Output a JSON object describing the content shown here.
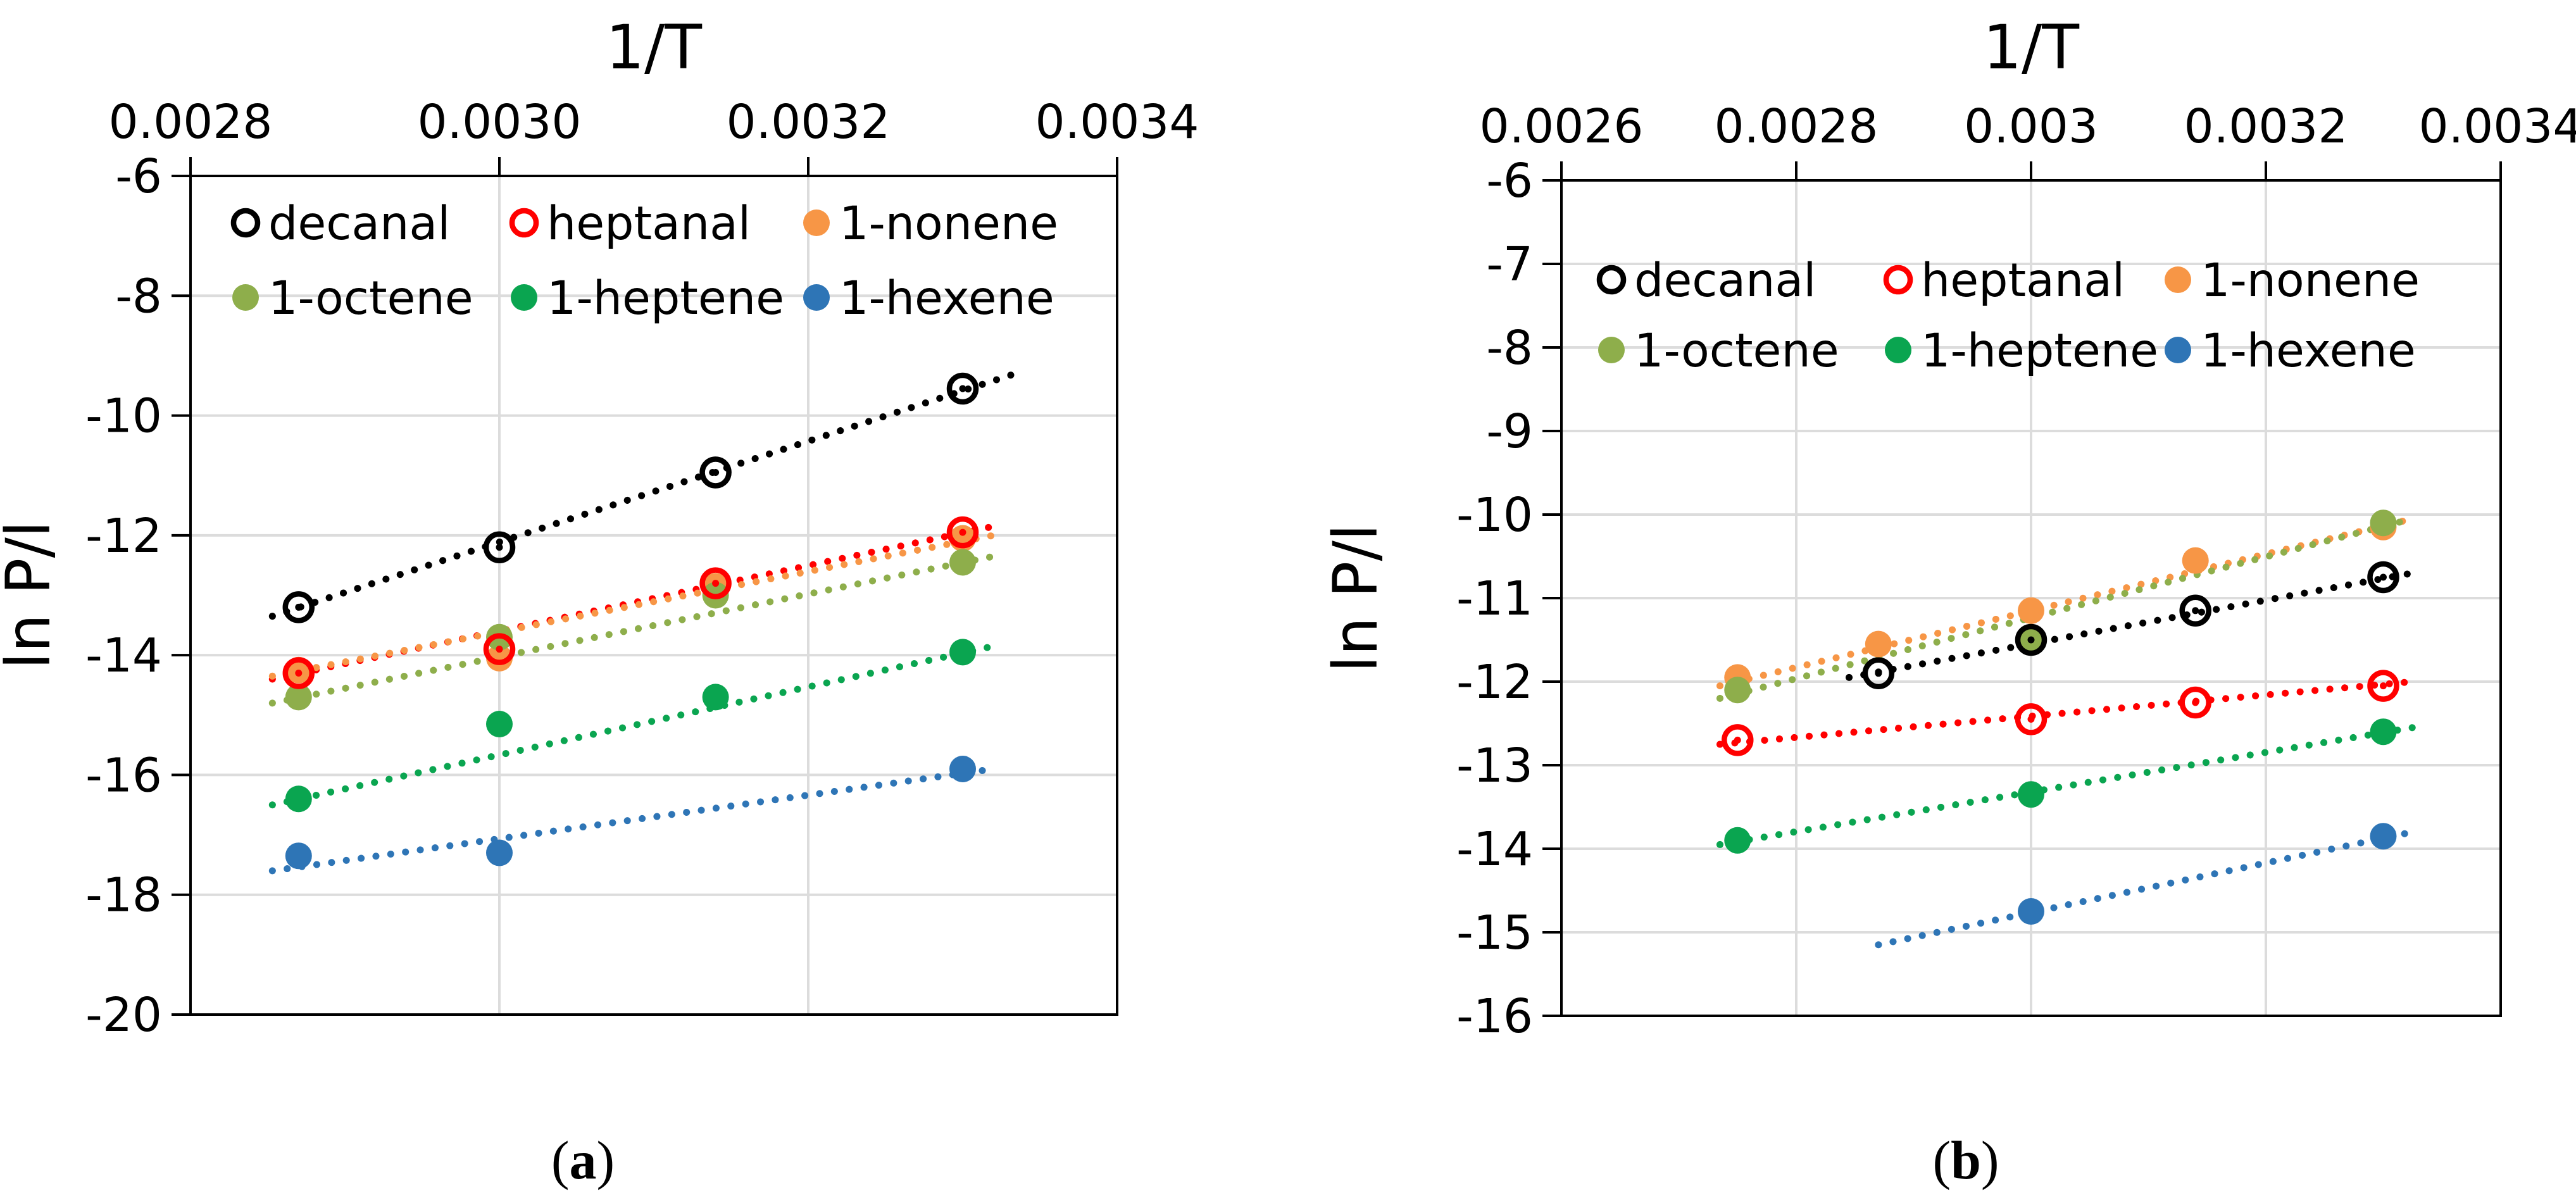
{
  "figure": {
    "background": "#ffffff",
    "axis_color": "#000000",
    "gridline_color": "#DCDCDC"
  },
  "captions": {
    "a": {
      "open": "(",
      "letter": "a",
      "close": ")"
    },
    "b": {
      "open": "(",
      "letter": "b",
      "close": ")"
    }
  },
  "chart_data": [
    {
      "id": "a",
      "type": "scatter",
      "title": "1/T",
      "ylabel": "ln P/l",
      "xlim": [
        0.0028,
        0.0034
      ],
      "ylim": [
        -20,
        -6
      ],
      "xticks": [
        0.0028,
        0.003,
        0.0032,
        0.0034
      ],
      "xtick_labels": [
        "0.0028",
        "0.0030",
        "0.0032",
        "0.0034"
      ],
      "yticks": [
        -6,
        -8,
        -10,
        -12,
        -14,
        -16,
        -18,
        -20
      ],
      "ytick_labels": [
        "-6",
        "-8",
        "-10",
        "-12",
        "-14",
        "-16",
        "-18",
        "-20"
      ],
      "grid": true,
      "legend_position": "top-left-inside",
      "legend_rows": [
        [
          "decanal",
          "heptanal",
          "1-nonene"
        ],
        [
          "1-octene",
          "1-heptene",
          "1-hexene"
        ]
      ],
      "series": [
        {
          "name": "decanal",
          "marker": "open",
          "color": "#000000",
          "points": [
            [
              0.00287,
              -13.2
            ],
            [
              0.003,
              -12.2
            ],
            [
              0.00314,
              -10.95
            ],
            [
              0.0033,
              -9.55
            ]
          ],
          "trend": {
            "x": [
              0.002853,
              0.00334
            ],
            "y": [
              -13.35,
              -9.25
            ]
          }
        },
        {
          "name": "heptanal",
          "marker": "open",
          "color": "#FF0000",
          "points": [
            [
              0.00287,
              -14.3
            ],
            [
              0.003,
              -13.9
            ],
            [
              0.00314,
              -12.8
            ],
            [
              0.0033,
              -11.95
            ]
          ],
          "trend": {
            "x": [
              0.002853,
              0.00332
            ],
            "y": [
              -14.4,
              -11.85
            ]
          }
        },
        {
          "name": "1-nonene",
          "marker": "filled",
          "color": "#F79646",
          "points": [
            [
              0.00287,
              -14.25
            ],
            [
              0.003,
              -14.05
            ],
            [
              0.00314,
              -12.85
            ],
            [
              0.0033,
              -12.05
            ]
          ],
          "trend": {
            "x": [
              0.002853,
              0.00332
            ],
            "y": [
              -14.35,
              -12.0
            ]
          }
        },
        {
          "name": "1-octene",
          "marker": "filled",
          "color": "#8EAE4B",
          "points": [
            [
              0.00287,
              -14.7
            ],
            [
              0.003,
              -13.7
            ],
            [
              0.00314,
              -13.0
            ],
            [
              0.0033,
              -12.45
            ]
          ],
          "trend": {
            "x": [
              0.002853,
              0.00332
            ],
            "y": [
              -14.8,
              -12.35
            ]
          }
        },
        {
          "name": "1-heptene",
          "marker": "filled",
          "color": "#0AA550",
          "points": [
            [
              0.00287,
              -16.4
            ],
            [
              0.003,
              -15.15
            ],
            [
              0.00314,
              -14.7
            ],
            [
              0.0033,
              -13.95
            ]
          ],
          "trend": {
            "x": [
              0.002853,
              0.00332
            ],
            "y": [
              -16.5,
              -13.85
            ]
          }
        },
        {
          "name": "1-hexene",
          "marker": "filled",
          "color": "#2E75B6",
          "points": [
            [
              0.00287,
              -17.35
            ],
            [
              0.003,
              -17.3
            ],
            [
              0.0033,
              -15.9
            ]
          ],
          "trend": {
            "x": [
              0.002853,
              0.00332
            ],
            "y": [
              -17.6,
              -15.9
            ]
          }
        }
      ]
    },
    {
      "id": "b",
      "type": "scatter",
      "title": "1/T",
      "ylabel": "ln P/l",
      "xlim": [
        0.0026,
        0.0034
      ],
      "ylim": [
        -16,
        -6
      ],
      "xticks": [
        0.0026,
        0.0028,
        0.003,
        0.0032,
        0.0034
      ],
      "xtick_labels": [
        "0.0026",
        "0.0028",
        "0.003",
        "0.0032",
        "0.0034"
      ],
      "yticks": [
        -6,
        -7,
        -8,
        -9,
        -10,
        -11,
        -12,
        -13,
        -14,
        -15,
        -16
      ],
      "ytick_labels": [
        "-6",
        "-7",
        "-8",
        "-9",
        "-10",
        "-11",
        "-12",
        "-13",
        "-14",
        "-15",
        "-16"
      ],
      "grid": true,
      "legend_position": "top-left-inside",
      "legend_rows": [
        [
          "decanal",
          "heptanal",
          "1-nonene"
        ],
        [
          "1-octene",
          "1-heptene",
          "1-hexene"
        ]
      ],
      "series": [
        {
          "name": "decanal",
          "marker": "open",
          "color": "#000000",
          "points": [
            [
              0.00287,
              -11.9
            ],
            [
              0.003,
              -11.5
            ],
            [
              0.00314,
              -11.15
            ],
            [
              0.0033,
              -10.75
            ]
          ],
          "trend": {
            "x": [
              0.002845,
              0.003325
            ],
            "y": [
              -11.95,
              -10.7
            ]
          }
        },
        {
          "name": "heptanal",
          "marker": "open",
          "color": "#FF0000",
          "points": [
            [
              0.00275,
              -12.7
            ],
            [
              0.003,
              -12.45
            ],
            [
              0.00314,
              -12.25
            ],
            [
              0.0033,
              -12.05
            ]
          ],
          "trend": {
            "x": [
              0.002735,
              0.003325
            ],
            "y": [
              -12.75,
              -12.0
            ]
          }
        },
        {
          "name": "1-nonene",
          "marker": "filled",
          "color": "#F79646",
          "points": [
            [
              0.00275,
              -11.95
            ],
            [
              0.00287,
              -11.55
            ],
            [
              0.003,
              -11.15
            ],
            [
              0.00314,
              -10.55
            ],
            [
              0.0033,
              -10.15
            ]
          ],
          "trend": {
            "x": [
              0.002735,
              0.003325
            ],
            "y": [
              -12.05,
              -10.05
            ]
          }
        },
        {
          "name": "1-octene",
          "marker": "filled",
          "color": "#8EAE4B",
          "points": [
            [
              0.00275,
              -12.1
            ],
            [
              0.003,
              -11.5
            ],
            [
              0.0033,
              -10.1
            ]
          ],
          "trend": {
            "x": [
              0.002735,
              0.003325
            ],
            "y": [
              -12.2,
              -10.05
            ]
          }
        },
        {
          "name": "1-heptene",
          "marker": "filled",
          "color": "#0AA550",
          "points": [
            [
              0.00275,
              -13.9
            ],
            [
              0.003,
              -13.35
            ],
            [
              0.0033,
              -12.6
            ]
          ],
          "trend": {
            "x": [
              0.002735,
              0.003325
            ],
            "y": [
              -13.95,
              -12.55
            ]
          }
        },
        {
          "name": "1-hexene",
          "marker": "filled",
          "color": "#2E75B6",
          "points": [
            [
              0.003,
              -14.75
            ],
            [
              0.0033,
              -13.85
            ]
          ],
          "trend": {
            "x": [
              0.00287,
              0.003325
            ],
            "y": [
              -15.15,
              -13.8
            ]
          }
        }
      ]
    }
  ]
}
